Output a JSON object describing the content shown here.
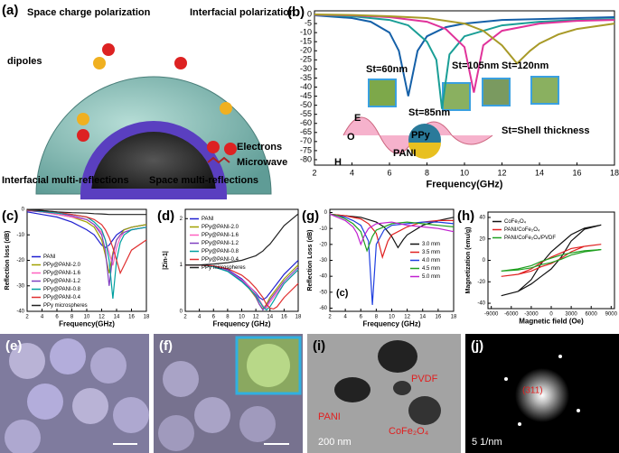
{
  "figure": {
    "a": {
      "label": "(a)",
      "texts": [
        "Space charge polarization",
        "Interfacial polarization",
        "dipoles",
        "Electrons",
        "Microwave",
        "Interfacial multi-reflections",
        "Space multi-reflections"
      ]
    },
    "e": {
      "label": "(e)"
    },
    "f": {
      "label": "(f)"
    },
    "i": {
      "label": "(i)",
      "texts": [
        "PVDF",
        "PANI",
        "CoFe₂O₄",
        "200 nm"
      ]
    },
    "j": {
      "label": "(j)",
      "texts": [
        "(311)",
        "5 1/nm"
      ]
    }
  },
  "chart_data": [
    {
      "type": "line",
      "panel": "(b)",
      "xlabel": "Frequency(GHz)",
      "xlim": [
        2,
        18
      ],
      "xticks": [
        2,
        4,
        6,
        8,
        10,
        12,
        14,
        16,
        18
      ],
      "ylim": [
        -83,
        2
      ],
      "yticks": [
        0,
        -5,
        -10,
        -15,
        -20,
        -25,
        -30,
        -35,
        -40,
        -45,
        -50,
        -55,
        -60,
        -65,
        -70,
        -75,
        -80
      ],
      "annotations": [
        "St=60nm",
        "St=85nm",
        "St=105nm",
        "St=120nm",
        "St=Shell thickness",
        "E",
        "O",
        "H",
        "PPy",
        "PANI"
      ],
      "series": [
        {
          "name": "St=60nm",
          "color": "#1560a8",
          "x": [
            2,
            4,
            5,
            6,
            6.5,
            7,
            7.5,
            8,
            9,
            10,
            12,
            14,
            16,
            18
          ],
          "values": [
            -0.5,
            -2,
            -4,
            -10,
            -20,
            -45,
            -20,
            -12,
            -7,
            -5,
            -3,
            -2.5,
            -2,
            -1.5
          ]
        },
        {
          "name": "St=85nm",
          "color": "#1a9e96",
          "x": [
            2,
            4,
            6,
            7,
            8,
            8.5,
            8.8,
            9.2,
            10,
            12,
            14,
            16,
            18
          ],
          "values": [
            -0.3,
            -1,
            -3,
            -6,
            -15,
            -25,
            -52,
            -22,
            -12,
            -6,
            -4,
            -3,
            -2.5
          ]
        },
        {
          "name": "St=105nm",
          "color": "#e0339a",
          "x": [
            2,
            4,
            6,
            8,
            9,
            10,
            10.5,
            11,
            12,
            14,
            16,
            18
          ],
          "values": [
            -0.2,
            -0.5,
            -1.5,
            -4,
            -8,
            -18,
            -43,
            -17,
            -9,
            -5,
            -3.5,
            -3
          ]
        },
        {
          "name": "St=120nm",
          "color": "#a89a28",
          "x": [
            2,
            4,
            6,
            8,
            10,
            11,
            12,
            12.8,
            13.5,
            14,
            15,
            16,
            18
          ],
          "values": [
            0,
            -0.3,
            -1,
            -2,
            -5,
            -9,
            -17,
            -27,
            -20,
            -16,
            -11,
            -8,
            -5
          ]
        }
      ]
    },
    {
      "type": "line",
      "panel": "(c)",
      "xlabel": "Frequency(GHz)",
      "ylabel": "Reflection loss (dB)",
      "legend": "lower left",
      "x": [
        2,
        4,
        6,
        8,
        10,
        11,
        12,
        12.5,
        13,
        13.5,
        14,
        14.5,
        15,
        16,
        18
      ],
      "xlim": [
        2,
        18
      ],
      "xticks": [
        2,
        4,
        6,
        8,
        10,
        12,
        14,
        16,
        18
      ],
      "ylim": [
        -40,
        0
      ],
      "yticks": [
        0,
        -10,
        -20,
        -30,
        -40
      ],
      "series": [
        {
          "name": "PANI",
          "color": "#1f1fd0",
          "values": [
            -1,
            -2,
            -3,
            -5,
            -8,
            -10,
            -14,
            -15,
            -14,
            -12,
            -10,
            -9,
            -8,
            -7,
            -6
          ]
        },
        {
          "name": "PPy@PANI-2.0",
          "color": "#a0a000",
          "values": [
            -0.5,
            -1,
            -2,
            -3,
            -5,
            -7,
            -12,
            -18,
            -25,
            -17,
            -12,
            -10,
            -8,
            -7,
            -6
          ]
        },
        {
          "name": "PPy@PANI-1.6",
          "color": "#ff60c0",
          "values": [
            -0.5,
            -1,
            -2,
            -3,
            -4,
            -6,
            -9,
            -12,
            -17,
            -22,
            -15,
            -11,
            -9,
            -8,
            -7
          ]
        },
        {
          "name": "PPy@PANI-1.2",
          "color": "#8040c0",
          "values": [
            -0.5,
            -1,
            -1.5,
            -2.5,
            -4,
            -6,
            -10,
            -16,
            -30,
            -18,
            -12,
            -10,
            -9,
            -8,
            -7
          ]
        },
        {
          "name": "PPy@PANI-0.8",
          "color": "#00a0a0",
          "values": [
            -0.3,
            -0.8,
            -1.5,
            -2,
            -3,
            -5,
            -8,
            -12,
            -20,
            -35,
            -20,
            -13,
            -10,
            -8,
            -7
          ]
        },
        {
          "name": "PPy@PANI-0.4",
          "color": "#e03030",
          "values": [
            -0.3,
            -0.5,
            -1,
            -2,
            -3,
            -4,
            -6,
            -8,
            -11,
            -15,
            -20,
            -25,
            -22,
            -16,
            -12
          ]
        },
        {
          "name": "PPy microspheres",
          "color": "#222222",
          "values": [
            0,
            -0.5,
            -1,
            -1.3,
            -1.5,
            -1.7,
            -1.8,
            -1.9,
            -2,
            -2,
            -2,
            -2,
            -2,
            -2,
            -2
          ]
        }
      ]
    },
    {
      "type": "line",
      "panel": "(d)",
      "xlabel": "Frequency (GHz)",
      "ylabel": "|Zin-1|",
      "legend": "upper left",
      "x": [
        2,
        4,
        6,
        8,
        10,
        11,
        12,
        12.5,
        13,
        13.5,
        14,
        14.5,
        15,
        16,
        18
      ],
      "xlim": [
        2,
        18
      ],
      "xticks": [
        2,
        4,
        6,
        8,
        10,
        12,
        14,
        16,
        18
      ],
      "ylim": [
        0,
        2.2
      ],
      "yticks": [
        0,
        1,
        2
      ],
      "series": [
        {
          "name": "PANI",
          "color": "#1f1fd0",
          "values": [
            1,
            1,
            0.98,
            0.9,
            0.7,
            0.55,
            0.4,
            0.3,
            0.25,
            0.3,
            0.4,
            0.5,
            0.6,
            0.8,
            1.1
          ]
        },
        {
          "name": "PPy@PANI-2.0",
          "color": "#a0a000",
          "values": [
            1,
            1,
            0.97,
            0.88,
            0.65,
            0.5,
            0.3,
            0.15,
            0.05,
            0.15,
            0.3,
            0.4,
            0.5,
            0.7,
            1.0
          ]
        },
        {
          "name": "PPy@PANI-1.6",
          "color": "#ff60c0",
          "values": [
            1,
            1,
            0.97,
            0.88,
            0.68,
            0.55,
            0.38,
            0.25,
            0.12,
            0.07,
            0.2,
            0.3,
            0.4,
            0.6,
            0.9
          ]
        },
        {
          "name": "PPy@PANI-1.2",
          "color": "#8040c0",
          "values": [
            1,
            1,
            0.97,
            0.87,
            0.66,
            0.52,
            0.32,
            0.15,
            0.03,
            0.12,
            0.25,
            0.35,
            0.45,
            0.65,
            0.95
          ]
        },
        {
          "name": "PPy@PANI-0.8",
          "color": "#00a0a0",
          "values": [
            1,
            1,
            0.96,
            0.86,
            0.64,
            0.5,
            0.35,
            0.22,
            0.1,
            0.03,
            0.1,
            0.22,
            0.35,
            0.6,
            0.9
          ]
        },
        {
          "name": "PPy@PANI-0.4",
          "color": "#e03030",
          "values": [
            1,
            1,
            0.98,
            0.92,
            0.78,
            0.66,
            0.5,
            0.4,
            0.3,
            0.15,
            0.07,
            0.05,
            0.1,
            0.3,
            0.6
          ]
        },
        {
          "name": "PPy microspheres",
          "color": "#222222",
          "values": [
            1,
            1,
            1.02,
            1.05,
            1.1,
            1.15,
            1.2,
            1.25,
            1.3,
            1.38,
            1.45,
            1.55,
            1.65,
            1.85,
            2.1
          ]
        }
      ]
    },
    {
      "type": "line",
      "panel": "(g)",
      "xlabel": "Frequency (GHz)",
      "ylabel": "Reflection Loss (dB)",
      "legend": "center right",
      "annotations": [
        "(c)"
      ],
      "xlim": [
        2,
        18
      ],
      "xticks": [
        2,
        4,
        6,
        8,
        10,
        12,
        14,
        16,
        18
      ],
      "ylim": [
        -62,
        2
      ],
      "yticks": [
        0,
        -10,
        -20,
        -30,
        -40,
        -50,
        -60
      ],
      "series": [
        {
          "name": "3.0 mm",
          "color": "#111111",
          "x": [
            2,
            4,
            6,
            8,
            9,
            10,
            10.8,
            11.5,
            12,
            14,
            16,
            18
          ],
          "values": [
            -1,
            -2,
            -3,
            -6,
            -9,
            -15,
            -22,
            -17,
            -14,
            -8,
            -5,
            -3
          ]
        },
        {
          "name": "3.5 mm",
          "color": "#e02020",
          "x": [
            2,
            4,
            6,
            7,
            8,
            8.8,
            9.5,
            10,
            12,
            14,
            16,
            18
          ],
          "values": [
            -1,
            -2,
            -4,
            -7,
            -13,
            -28,
            -18,
            -14,
            -9,
            -6,
            -5,
            -5
          ]
        },
        {
          "name": "4.0 mm",
          "color": "#1f3fe0",
          "x": [
            2,
            4,
            5,
            6,
            7,
            7.5,
            8,
            9,
            10,
            12,
            14,
            16,
            18
          ],
          "values": [
            -1,
            -3,
            -5,
            -8,
            -18,
            -58,
            -20,
            -11,
            -8,
            -7,
            -6,
            -6,
            -7
          ]
        },
        {
          "name": "4.5 mm",
          "color": "#20a020",
          "x": [
            2,
            3,
            4,
            5,
            6,
            6.8,
            7.5,
            8,
            10,
            12,
            14,
            16,
            18
          ],
          "values": [
            -1,
            -2,
            -4,
            -7,
            -12,
            -24,
            -15,
            -11,
            -7,
            -6,
            -7,
            -8,
            -9
          ]
        },
        {
          "name": "5.0 mm",
          "color": "#c020d0",
          "x": [
            2,
            3,
            4,
            5,
            5.5,
            6,
            6.5,
            7,
            8,
            10,
            12,
            14,
            16,
            18
          ],
          "values": [
            -1,
            -3,
            -5,
            -9,
            -13,
            -20,
            -14,
            -10,
            -7,
            -6,
            -8,
            -9,
            -10,
            -12
          ]
        }
      ]
    },
    {
      "type": "line",
      "panel": "(h)",
      "xlabel": "Magnetic field (Oe)",
      "ylabel": "Magnetization (emu/g)",
      "legend": "upper left",
      "x": [
        -7500,
        -5000,
        -3000,
        -1500,
        0,
        1500,
        3000,
        5000,
        7500,
        5000,
        3000,
        1500,
        0,
        -1500,
        -3000,
        -5000,
        -7500
      ],
      "xlim": [
        -9500,
        9500
      ],
      "xticks": [
        -9000,
        -6000,
        -3000,
        0,
        3000,
        6000,
        9000
      ],
      "ylim": [
        -45,
        45
      ],
      "yticks": [
        -40,
        -20,
        0,
        20,
        40
      ],
      "series": [
        {
          "name": "CoFe₂O₄",
          "color": "#111111",
          "values": [
            -33,
            -29,
            -22,
            -15,
            -8,
            3,
            18,
            29,
            33,
            30,
            24,
            16,
            8,
            -3,
            -18,
            -29,
            -33
          ]
        },
        {
          "name": "PANI/CoFe₂O₄",
          "color": "#e02020",
          "values": [
            -15,
            -13,
            -10,
            -6,
            -3,
            2,
            8,
            13,
            15,
            13,
            11,
            7,
            3,
            -2,
            -8,
            -13,
            -15
          ]
        },
        {
          "name": "PANI/CoFe₂O₄/PVDF",
          "color": "#20a020",
          "values": [
            -10,
            -9,
            -7,
            -4,
            -2,
            1,
            5,
            8,
            10,
            9,
            7,
            5,
            2,
            -1,
            -5,
            -8,
            -10
          ]
        }
      ]
    }
  ]
}
